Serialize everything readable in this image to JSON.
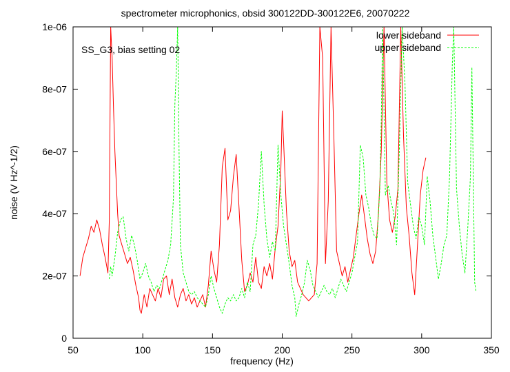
{
  "chart_data": {
    "type": "line",
    "title": "spectrometer microphonics, obsid 300122DD-300122E6, 20070222",
    "annotation": "SS_G3, bias setting 02",
    "xlabel": "frequency (Hz)",
    "ylabel": "noise (V Hz^-1/2)",
    "xlim": [
      50,
      350
    ],
    "ylim": [
      0,
      1e-06
    ],
    "xticks": [
      50,
      100,
      150,
      200,
      250,
      300,
      350
    ],
    "xtick_labels": [
      "50",
      "100",
      "150",
      "200",
      "250",
      "300",
      "350"
    ],
    "yticks": [
      0,
      2e-07,
      4e-07,
      6e-07,
      8e-07,
      1e-06
    ],
    "ytick_labels": [
      "0",
      "2e-07",
      "4e-07",
      "6e-07",
      "8e-07",
      "1e-06"
    ],
    "legend_position": "top-right",
    "grid": false,
    "series": [
      {
        "name": "lower sideband",
        "color": "#ff0000",
        "dash": "solid",
        "points": [
          [
            55,
            2e-07
          ],
          [
            57,
            2.6e-07
          ],
          [
            59,
            2.9e-07
          ],
          [
            61,
            3.2e-07
          ],
          [
            63,
            3.6e-07
          ],
          [
            65,
            3.4e-07
          ],
          [
            67,
            3.8e-07
          ],
          [
            69,
            3.5e-07
          ],
          [
            71,
            3e-07
          ],
          [
            73,
            2.6e-07
          ],
          [
            75,
            2.1e-07
          ],
          [
            76,
            3.8e-07
          ],
          [
            77,
            1e-06
          ],
          [
            78,
            9e-07
          ],
          [
            79,
            7.4e-07
          ],
          [
            80,
            6e-07
          ],
          [
            81,
            5e-07
          ],
          [
            82,
            4e-07
          ],
          [
            83,
            3.3e-07
          ],
          [
            85,
            3e-07
          ],
          [
            87,
            2.7e-07
          ],
          [
            89,
            2.4e-07
          ],
          [
            91,
            2.6e-07
          ],
          [
            93,
            2.2e-07
          ],
          [
            95,
            1.7e-07
          ],
          [
            97,
            1.3e-07
          ],
          [
            98,
            9e-08
          ],
          [
            99,
            8e-08
          ],
          [
            101,
            1.4e-07
          ],
          [
            103,
            1e-07
          ],
          [
            105,
            1.6e-07
          ],
          [
            107,
            1.4e-07
          ],
          [
            109,
            1.2e-07
          ],
          [
            111,
            1.6e-07
          ],
          [
            113,
            1.3e-07
          ],
          [
            115,
            1.9e-07
          ],
          [
            117,
            2e-07
          ],
          [
            119,
            1.4e-07
          ],
          [
            121,
            1.9e-07
          ],
          [
            123,
            1.3e-07
          ],
          [
            125,
            1e-07
          ],
          [
            127,
            1.4e-07
          ],
          [
            129,
            1.6e-07
          ],
          [
            131,
            1.2e-07
          ],
          [
            133,
            1.4e-07
          ],
          [
            135,
            1.1e-07
          ],
          [
            137,
            1.3e-07
          ],
          [
            139,
            1e-07
          ],
          [
            141,
            1.2e-07
          ],
          [
            143,
            1.4e-07
          ],
          [
            145,
            1e-07
          ],
          [
            147,
            1.7e-07
          ],
          [
            149,
            2.8e-07
          ],
          [
            151,
            2.2e-07
          ],
          [
            153,
            1.8e-07
          ],
          [
            155,
            3e-07
          ],
          [
            157,
            5.5e-07
          ],
          [
            159,
            6.1e-07
          ],
          [
            161,
            3.8e-07
          ],
          [
            163,
            4.1e-07
          ],
          [
            165,
            5.2e-07
          ],
          [
            167,
            5.9e-07
          ],
          [
            169,
            4.2e-07
          ],
          [
            171,
            2.5e-07
          ],
          [
            173,
            1.5e-07
          ],
          [
            175,
            1.7e-07
          ],
          [
            177,
            2.1e-07
          ],
          [
            179,
            1.8e-07
          ],
          [
            181,
            2.6e-07
          ],
          [
            183,
            1.8e-07
          ],
          [
            185,
            1.6e-07
          ],
          [
            187,
            2.3e-07
          ],
          [
            189,
            2e-07
          ],
          [
            191,
            2.4e-07
          ],
          [
            193,
            1.9e-07
          ],
          [
            195,
            2.9e-07
          ],
          [
            197,
            3.6e-07
          ],
          [
            199,
            5.4e-07
          ],
          [
            200,
            7.3e-07
          ],
          [
            201,
            6.3e-07
          ],
          [
            203,
            4.1e-07
          ],
          [
            205,
            2.8e-07
          ],
          [
            207,
            2.3e-07
          ],
          [
            209,
            2.5e-07
          ],
          [
            211,
            1.8e-07
          ],
          [
            213,
            1.6e-07
          ],
          [
            215,
            1.4e-07
          ],
          [
            217,
            1.3e-07
          ],
          [
            219,
            1.2e-07
          ],
          [
            221,
            1.3e-07
          ],
          [
            223,
            1.4e-07
          ],
          [
            225,
            2.4e-07
          ],
          [
            227,
            1e-06
          ],
          [
            229,
            9e-07
          ],
          [
            231,
            2.4e-07
          ],
          [
            233,
            4.4e-07
          ],
          [
            235,
            1e-06
          ],
          [
            237,
            6.5e-07
          ],
          [
            239,
            2.8e-07
          ],
          [
            241,
            2.4e-07
          ],
          [
            243,
            2e-07
          ],
          [
            245,
            2.3e-07
          ],
          [
            247,
            1.8e-07
          ],
          [
            249,
            2.2e-07
          ],
          [
            251,
            2.6e-07
          ],
          [
            253,
            3.3e-07
          ],
          [
            255,
            4e-07
          ],
          [
            257,
            4.6e-07
          ],
          [
            259,
            3.9e-07
          ],
          [
            261,
            3.2e-07
          ],
          [
            263,
            2.7e-07
          ],
          [
            265,
            2.4e-07
          ],
          [
            267,
            2.8e-07
          ],
          [
            269,
            4e-07
          ],
          [
            271,
            6e-07
          ],
          [
            273,
            1e-06
          ],
          [
            275,
            5e-07
          ],
          [
            277,
            3.8e-07
          ],
          [
            279,
            3.4e-07
          ],
          [
            281,
            3.9e-07
          ],
          [
            283,
            4.8e-07
          ],
          [
            285,
            1e-06
          ],
          [
            287,
            6.5e-07
          ],
          [
            289,
            4.2e-07
          ],
          [
            291,
            3.3e-07
          ],
          [
            293,
            2.1e-07
          ],
          [
            295,
            1.4e-07
          ],
          [
            297,
            3e-07
          ],
          [
            299,
            4.6e-07
          ],
          [
            301,
            5.4e-07
          ],
          [
            303,
            5.8e-07
          ]
        ]
      },
      {
        "name": "upper sideband",
        "color": "#00ff00",
        "dash": "dashed",
        "points": [
          [
            76,
            1.9e-07
          ],
          [
            77,
            2.3e-07
          ],
          [
            78,
            2e-07
          ],
          [
            80,
            2.6e-07
          ],
          [
            82,
            3.4e-07
          ],
          [
            84,
            3.8e-07
          ],
          [
            86,
            3.9e-07
          ],
          [
            88,
            3.2e-07
          ],
          [
            90,
            2.8e-07
          ],
          [
            92,
            3.3e-07
          ],
          [
            94,
            3e-07
          ],
          [
            96,
            2.5e-07
          ],
          [
            98,
            1.9e-07
          ],
          [
            100,
            2.1e-07
          ],
          [
            102,
            2.4e-07
          ],
          [
            104,
            2e-07
          ],
          [
            106,
            1.8e-07
          ],
          [
            108,
            1.5e-07
          ],
          [
            110,
            1.7e-07
          ],
          [
            112,
            1.6e-07
          ],
          [
            114,
            1.9e-07
          ],
          [
            116,
            2.2e-07
          ],
          [
            118,
            2.5e-07
          ],
          [
            120,
            3e-07
          ],
          [
            122,
            4.5e-07
          ],
          [
            123,
            7.5e-07
          ],
          [
            124,
            8.5e-07
          ],
          [
            125,
            1e-06
          ],
          [
            126,
            6e-07
          ],
          [
            127,
            3e-07
          ],
          [
            129,
            2.1e-07
          ],
          [
            131,
            1.8e-07
          ],
          [
            133,
            1.5e-07
          ],
          [
            135,
            1.4e-07
          ],
          [
            137,
            1.5e-07
          ],
          [
            139,
            1.3e-07
          ],
          [
            141,
            1.2e-07
          ],
          [
            143,
            1.1e-07
          ],
          [
            145,
            1e-07
          ],
          [
            147,
            1.4e-07
          ],
          [
            149,
            2e-07
          ],
          [
            151,
            1.6e-07
          ],
          [
            153,
            1.3e-07
          ],
          [
            155,
            1e-07
          ],
          [
            157,
            8e-08
          ],
          [
            159,
            1.1e-07
          ],
          [
            161,
            1.3e-07
          ],
          [
            163,
            1.2e-07
          ],
          [
            165,
            1.4e-07
          ],
          [
            167,
            1.2e-07
          ],
          [
            169,
            1.3e-07
          ],
          [
            171,
            1.6e-07
          ],
          [
            173,
            1.3e-07
          ],
          [
            175,
            1.8e-07
          ],
          [
            177,
            1.5e-07
          ],
          [
            179,
            3e-07
          ],
          [
            181,
            3.3e-07
          ],
          [
            183,
            4.3e-07
          ],
          [
            185,
            6e-07
          ],
          [
            187,
            4.3e-07
          ],
          [
            189,
            3.2e-07
          ],
          [
            191,
            2.6e-07
          ],
          [
            193,
            3.1e-07
          ],
          [
            195,
            2.8e-07
          ],
          [
            197,
            6.2e-07
          ],
          [
            199,
            4.6e-07
          ],
          [
            201,
            3.6e-07
          ],
          [
            203,
            3e-07
          ],
          [
            205,
            2.4e-07
          ],
          [
            207,
            1.7e-07
          ],
          [
            209,
            1.3e-07
          ],
          [
            210,
            7e-08
          ],
          [
            212,
            1.1e-07
          ],
          [
            214,
            1.4e-07
          ],
          [
            216,
            1.8e-07
          ],
          [
            218,
            2.5e-07
          ],
          [
            220,
            2.2e-07
          ],
          [
            222,
            1.7e-07
          ],
          [
            224,
            1.5e-07
          ],
          [
            226,
            1.3e-07
          ],
          [
            228,
            1.5e-07
          ],
          [
            230,
            1.7e-07
          ],
          [
            232,
            1.5e-07
          ],
          [
            234,
            1.4e-07
          ],
          [
            236,
            1.6e-07
          ],
          [
            238,
            1.3e-07
          ],
          [
            240,
            1.6e-07
          ],
          [
            242,
            1.9e-07
          ],
          [
            244,
            1.7e-07
          ],
          [
            246,
            1.5e-07
          ],
          [
            248,
            1.8e-07
          ],
          [
            250,
            2.1e-07
          ],
          [
            252,
            2.6e-07
          ],
          [
            254,
            3.1e-07
          ],
          [
            256,
            6.2e-07
          ],
          [
            258,
            5.8e-07
          ],
          [
            260,
            4.6e-07
          ],
          [
            262,
            4.2e-07
          ],
          [
            264,
            3.6e-07
          ],
          [
            266,
            3.3e-07
          ],
          [
            268,
            3.2e-07
          ],
          [
            270,
            4.8e-07
          ],
          [
            271,
            7e-07
          ],
          [
            272,
            1e-06
          ],
          [
            274,
            4.6e-07
          ],
          [
            276,
            4.9e-07
          ],
          [
            278,
            4.4e-07
          ],
          [
            280,
            4e-07
          ],
          [
            282,
            3e-07
          ],
          [
            284,
            6.1e-07
          ],
          [
            286,
            1e-06
          ],
          [
            288,
            8.2e-07
          ],
          [
            290,
            5e-07
          ],
          [
            292,
            4.3e-07
          ],
          [
            294,
            3.6e-07
          ],
          [
            296,
            3.2e-07
          ],
          [
            298,
            3.9e-07
          ],
          [
            300,
            3.6e-07
          ],
          [
            302,
            3e-07
          ],
          [
            304,
            5.2e-07
          ],
          [
            306,
            4.4e-07
          ],
          [
            308,
            3.3e-07
          ],
          [
            310,
            2.6e-07
          ],
          [
            312,
            1.9e-07
          ],
          [
            314,
            2.4e-07
          ],
          [
            316,
            3e-07
          ],
          [
            318,
            3.3e-07
          ],
          [
            320,
            5.2e-07
          ],
          [
            322,
            8.8e-07
          ],
          [
            323,
            1e-06
          ],
          [
            325,
            4.8e-07
          ],
          [
            327,
            3.6e-07
          ],
          [
            329,
            2.7e-07
          ],
          [
            331,
            2.1e-07
          ],
          [
            333,
            3.5e-07
          ],
          [
            335,
            5.2e-07
          ],
          [
            336,
            8.7e-07
          ],
          [
            338,
            1.8e-07
          ],
          [
            339,
            1.5e-07
          ]
        ]
      }
    ]
  }
}
